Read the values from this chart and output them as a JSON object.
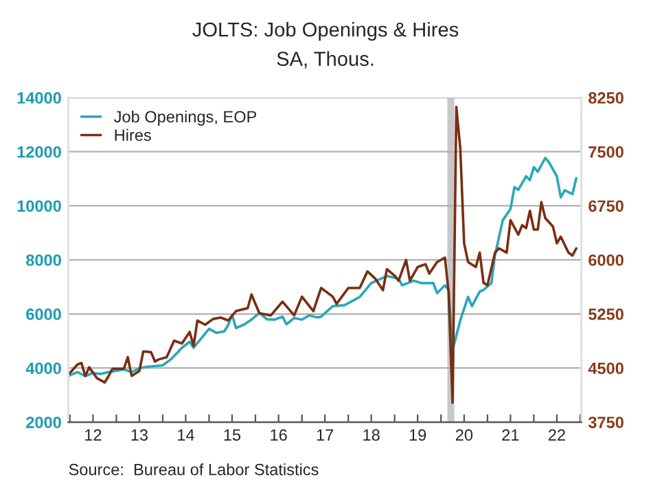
{
  "chart_data": {
    "type": "line",
    "title": "JOLTS: Job Openings & Hires",
    "subtitle": "SA, Thous.",
    "annotations": [
      "Source:  Bureau of Labor Statistics"
    ],
    "xlim": [
      "2011-12-20",
      "2023-01-10"
    ],
    "xticks": [
      {
        "value": "2012-01-01",
        "label": null
      },
      {
        "value": "2012-07-01",
        "label": "12"
      },
      {
        "value": "2013-01-01",
        "label": null
      },
      {
        "value": "2013-07-01",
        "label": "13"
      },
      {
        "value": "2014-01-01",
        "label": null
      },
      {
        "value": "2014-07-01",
        "label": "14"
      },
      {
        "value": "2015-01-01",
        "label": null
      },
      {
        "value": "2015-07-01",
        "label": "15"
      },
      {
        "value": "2016-01-01",
        "label": null
      },
      {
        "value": "2016-07-01",
        "label": "16"
      },
      {
        "value": "2017-01-01",
        "label": null
      },
      {
        "value": "2017-07-01",
        "label": "17"
      },
      {
        "value": "2018-01-01",
        "label": null
      },
      {
        "value": "2018-07-01",
        "label": "18"
      },
      {
        "value": "2019-01-01",
        "label": null
      },
      {
        "value": "2019-07-01",
        "label": "19"
      },
      {
        "value": "2020-01-01",
        "label": null
      },
      {
        "value": "2020-07-01",
        "label": "20"
      },
      {
        "value": "2021-01-01",
        "label": null
      },
      {
        "value": "2021-07-01",
        "label": "21"
      },
      {
        "value": "2022-01-01",
        "label": null
      },
      {
        "value": "2022-07-01",
        "label": "22"
      },
      {
        "value": "2023-01-01",
        "label": null
      }
    ],
    "ylim": [
      2000,
      14000
    ],
    "yticks": [
      2000,
      4000,
      6000,
      8000,
      10000,
      12000,
      14000
    ],
    "y2lim": [
      3750,
      8250
    ],
    "y2ticks": [
      3750,
      4500,
      5250,
      6000,
      6750,
      7500,
      8250
    ],
    "grid": "y",
    "legend": "top left",
    "bands": [
      {
        "axis": "x",
        "from": "2020-02-20",
        "to": "2020-04-15",
        "color": "#c8c8c8"
      }
    ],
    "series": [
      {
        "name": "Job Openings, EOP",
        "color": "#2aa7b8",
        "axis": "y",
        "x": [
          "2012-01",
          "2012-03",
          "2012-05",
          "2012-07",
          "2012-09",
          "2012-11",
          "2013-01",
          "2013-03",
          "2013-05",
          "2013-07",
          "2013-09",
          "2014-01",
          "2014-03",
          "2014-05",
          "2014-06",
          "2014-08",
          "2014-09",
          "2014-11",
          "2015-01",
          "2015-03",
          "2015-05",
          "2015-06",
          "2015-07",
          "2015-08",
          "2015-10",
          "2015-12",
          "2016-02",
          "2016-04",
          "2016-06",
          "2016-08",
          "2016-09",
          "2016-11",
          "2017-01",
          "2017-03",
          "2017-05",
          "2017-06",
          "2017-09",
          "2017-12",
          "2018-04",
          "2018-07",
          "2018-11",
          "2019-02",
          "2019-03",
          "2019-06",
          "2019-08",
          "2019-11",
          "2019-12",
          "2020-02",
          "2020-03",
          "2020-04",
          "2020-06",
          "2020-08",
          "2020-09",
          "2020-11",
          "2020-12",
          "2021-02",
          "2021-03",
          "2021-05",
          "2021-07",
          "2021-08",
          "2021-09",
          "2021-11",
          "2021-12",
          "2022-01",
          "2022-02",
          "2022-04",
          "2022-05",
          "2022-07",
          "2022-08",
          "2022-09",
          "2022-11",
          "2022-12"
        ],
        "values": [
          3730,
          3850,
          3700,
          3820,
          3780,
          3850,
          3900,
          3950,
          3850,
          3990,
          4050,
          4100,
          4300,
          4590,
          4750,
          4970,
          4750,
          5100,
          5450,
          5300,
          5360,
          5600,
          5960,
          5480,
          5600,
          5790,
          6040,
          5800,
          5790,
          5900,
          5620,
          5850,
          5790,
          5950,
          5870,
          5900,
          6290,
          6320,
          6630,
          7140,
          7400,
          7310,
          7060,
          7230,
          7140,
          7140,
          6770,
          7060,
          6890,
          4660,
          5770,
          6630,
          6290,
          6830,
          6890,
          7140,
          8170,
          9460,
          9880,
          10690,
          10590,
          11090,
          10950,
          11430,
          11260,
          11770,
          11600,
          11090,
          10310,
          10570,
          10430,
          11020
        ]
      },
      {
        "name": "Hires",
        "color": "#7a2e12",
        "axis": "y2",
        "x": [
          "2012-01",
          "2012-03",
          "2012-04",
          "2012-05",
          "2012-06",
          "2012-08",
          "2012-10",
          "2012-11",
          "2012-12",
          "2013-03",
          "2013-04",
          "2013-05",
          "2013-07",
          "2013-08",
          "2013-10",
          "2013-11",
          "2013-12",
          "2014-02",
          "2014-04",
          "2014-06",
          "2014-08",
          "2014-09",
          "2014-10",
          "2014-12",
          "2015-02",
          "2015-04",
          "2015-06",
          "2015-08",
          "2015-11",
          "2015-12",
          "2016-02",
          "2016-05",
          "2016-08",
          "2016-11",
          "2017-01",
          "2017-04",
          "2017-06",
          "2017-09",
          "2017-10",
          "2018-01",
          "2018-04",
          "2018-06",
          "2018-08",
          "2018-10",
          "2018-11",
          "2019-01",
          "2019-02",
          "2019-04",
          "2019-05",
          "2019-07",
          "2019-09",
          "2019-10",
          "2019-12",
          "2020-02",
          "2020-03",
          "2020-04",
          "2020-05",
          "2020-06",
          "2020-07",
          "2020-08",
          "2020-10",
          "2020-11",
          "2020-12",
          "2021-01",
          "2021-03",
          "2021-04",
          "2021-06",
          "2021-07",
          "2021-09",
          "2021-10",
          "2021-11",
          "2021-12",
          "2022-01",
          "2022-02",
          "2022-03",
          "2022-04",
          "2022-06",
          "2022-07",
          "2022-08",
          "2022-10",
          "2022-11",
          "2022-12"
        ],
        "values": [
          4430,
          4550,
          4570,
          4390,
          4510,
          4360,
          4300,
          4390,
          4490,
          4490,
          4650,
          4390,
          4460,
          4730,
          4720,
          4590,
          4620,
          4650,
          4880,
          4840,
          5000,
          4810,
          5160,
          5100,
          5180,
          5200,
          5160,
          5290,
          5330,
          5520,
          5260,
          5230,
          5420,
          5230,
          5490,
          5290,
          5610,
          5490,
          5390,
          5610,
          5610,
          5840,
          5740,
          5580,
          5870,
          5780,
          5710,
          6000,
          5710,
          5900,
          5940,
          5810,
          5970,
          6030,
          5550,
          4020,
          8120,
          7540,
          6230,
          5970,
          5900,
          6100,
          5680,
          5650,
          6100,
          6160,
          6100,
          6550,
          6350,
          6480,
          6440,
          6680,
          6420,
          6420,
          6800,
          6580,
          6460,
          6230,
          6320,
          6100,
          6060,
          6160
        ]
      }
    ]
  }
}
